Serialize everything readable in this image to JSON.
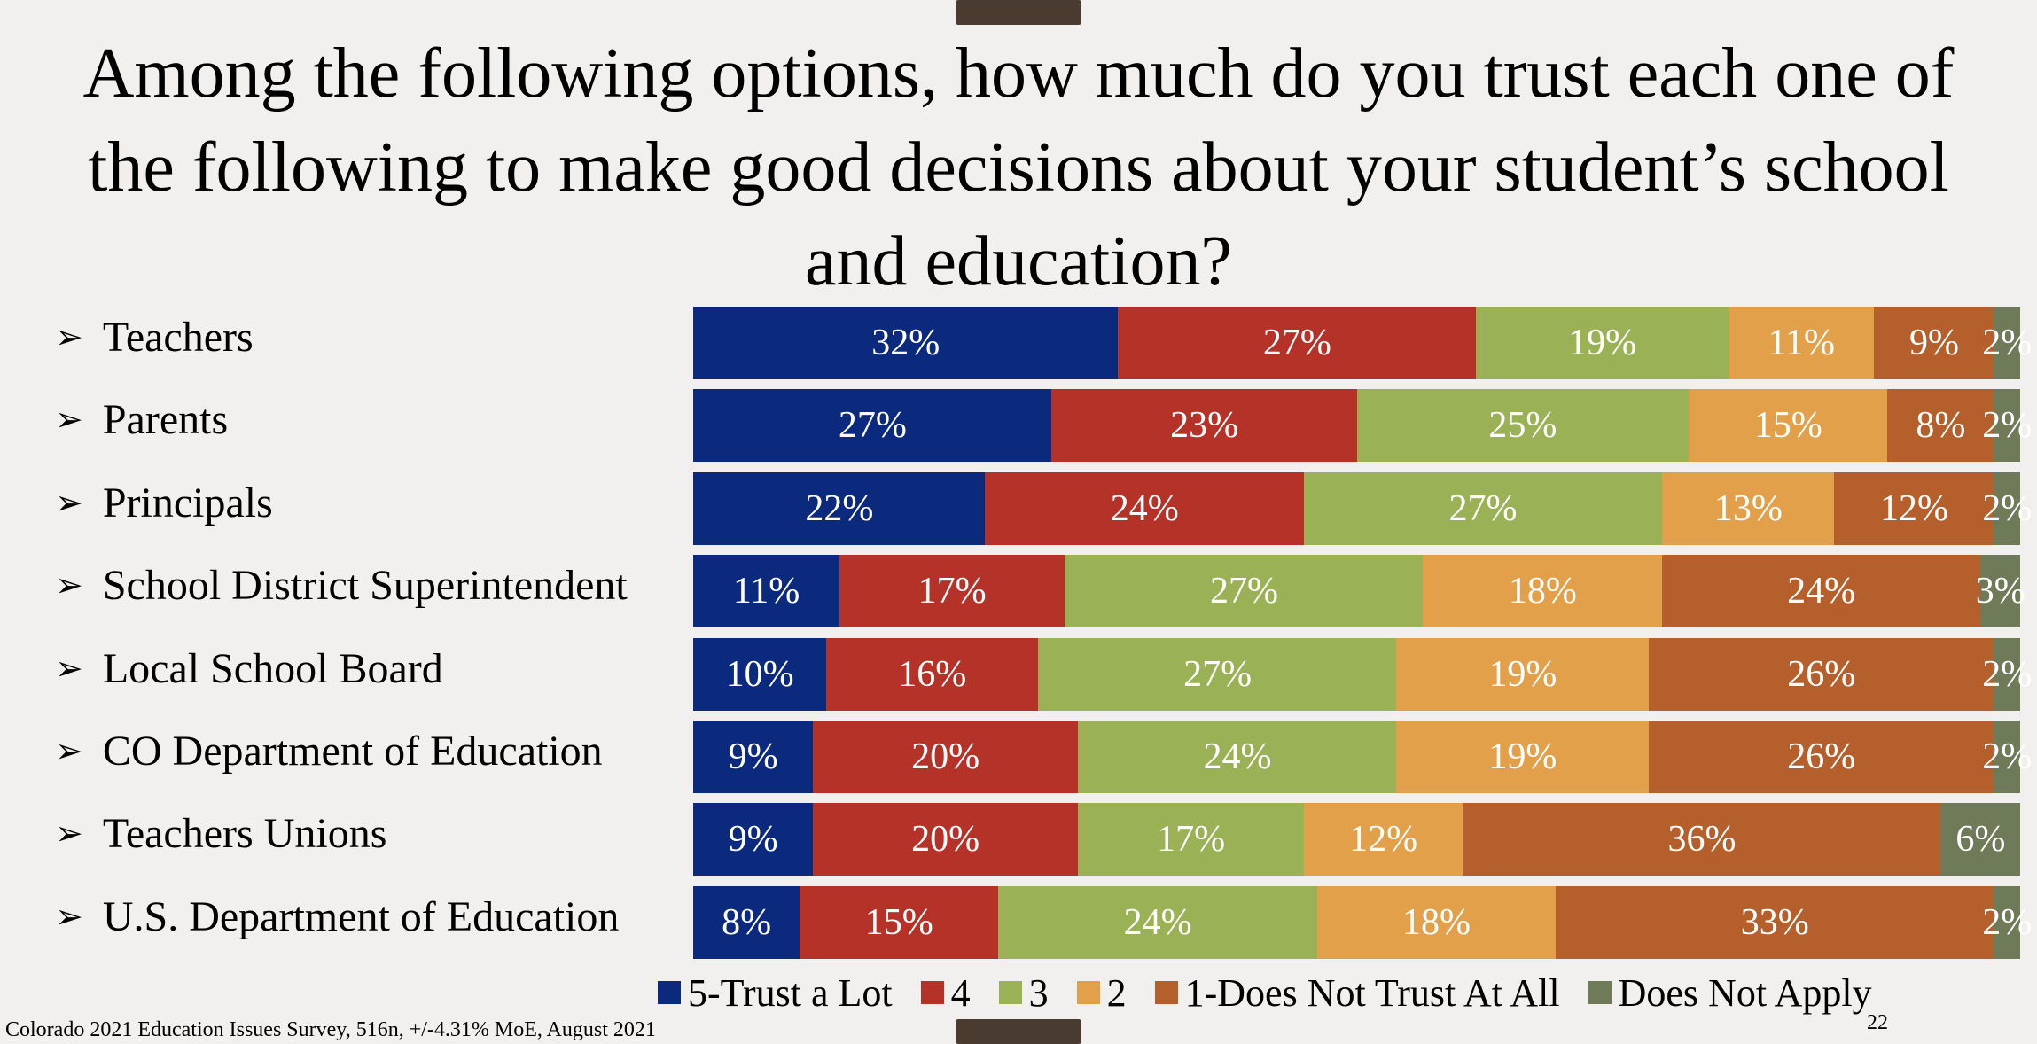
{
  "title": "Among the following options, how much do you trust each one of  the following to make good decisions about your student’s school and education?",
  "footnote": "Colorado 2021 Education Issues Survey, 516n, +/-4.31% MoE, August 2021",
  "page_number": "22",
  "colors": {
    "5-Trust a Lot": "#0c2a7d",
    "4": "#b43228",
    "3": "#9ab155",
    "2": "#e3a04a",
    "1-Does Not Trust At All": "#b5602c",
    "Does Not Apply": "#6e7a58"
  },
  "chart_data": {
    "type": "bar",
    "orientation": "horizontal",
    "stacked": true,
    "title": "Among the following options, how much do you trust each one of  the following to make good decisions about your student’s school and education?",
    "categories": [
      "Teachers",
      "Parents",
      "Principals",
      "School District Superintendent",
      "Local School Board",
      "CO Department of Education",
      "Teachers Unions",
      "U.S. Department of Education"
    ],
    "series": [
      {
        "name": "5-Trust a Lot",
        "values": [
          32,
          27,
          22,
          11,
          10,
          9,
          9,
          8
        ]
      },
      {
        "name": "4",
        "values": [
          27,
          23,
          24,
          17,
          16,
          20,
          20,
          15
        ]
      },
      {
        "name": "3",
        "values": [
          19,
          25,
          27,
          27,
          27,
          24,
          17,
          24
        ]
      },
      {
        "name": "2",
        "values": [
          11,
          15,
          13,
          18,
          19,
          19,
          12,
          18
        ]
      },
      {
        "name": "1-Does Not Trust At All",
        "values": [
          9,
          8,
          12,
          24,
          26,
          26,
          36,
          33
        ]
      },
      {
        "name": "Does Not Apply",
        "values": [
          2,
          2,
          2,
          3,
          2,
          2,
          6,
          2
        ]
      }
    ],
    "value_suffix": "%",
    "legend_position": "bottom",
    "grid": false
  }
}
